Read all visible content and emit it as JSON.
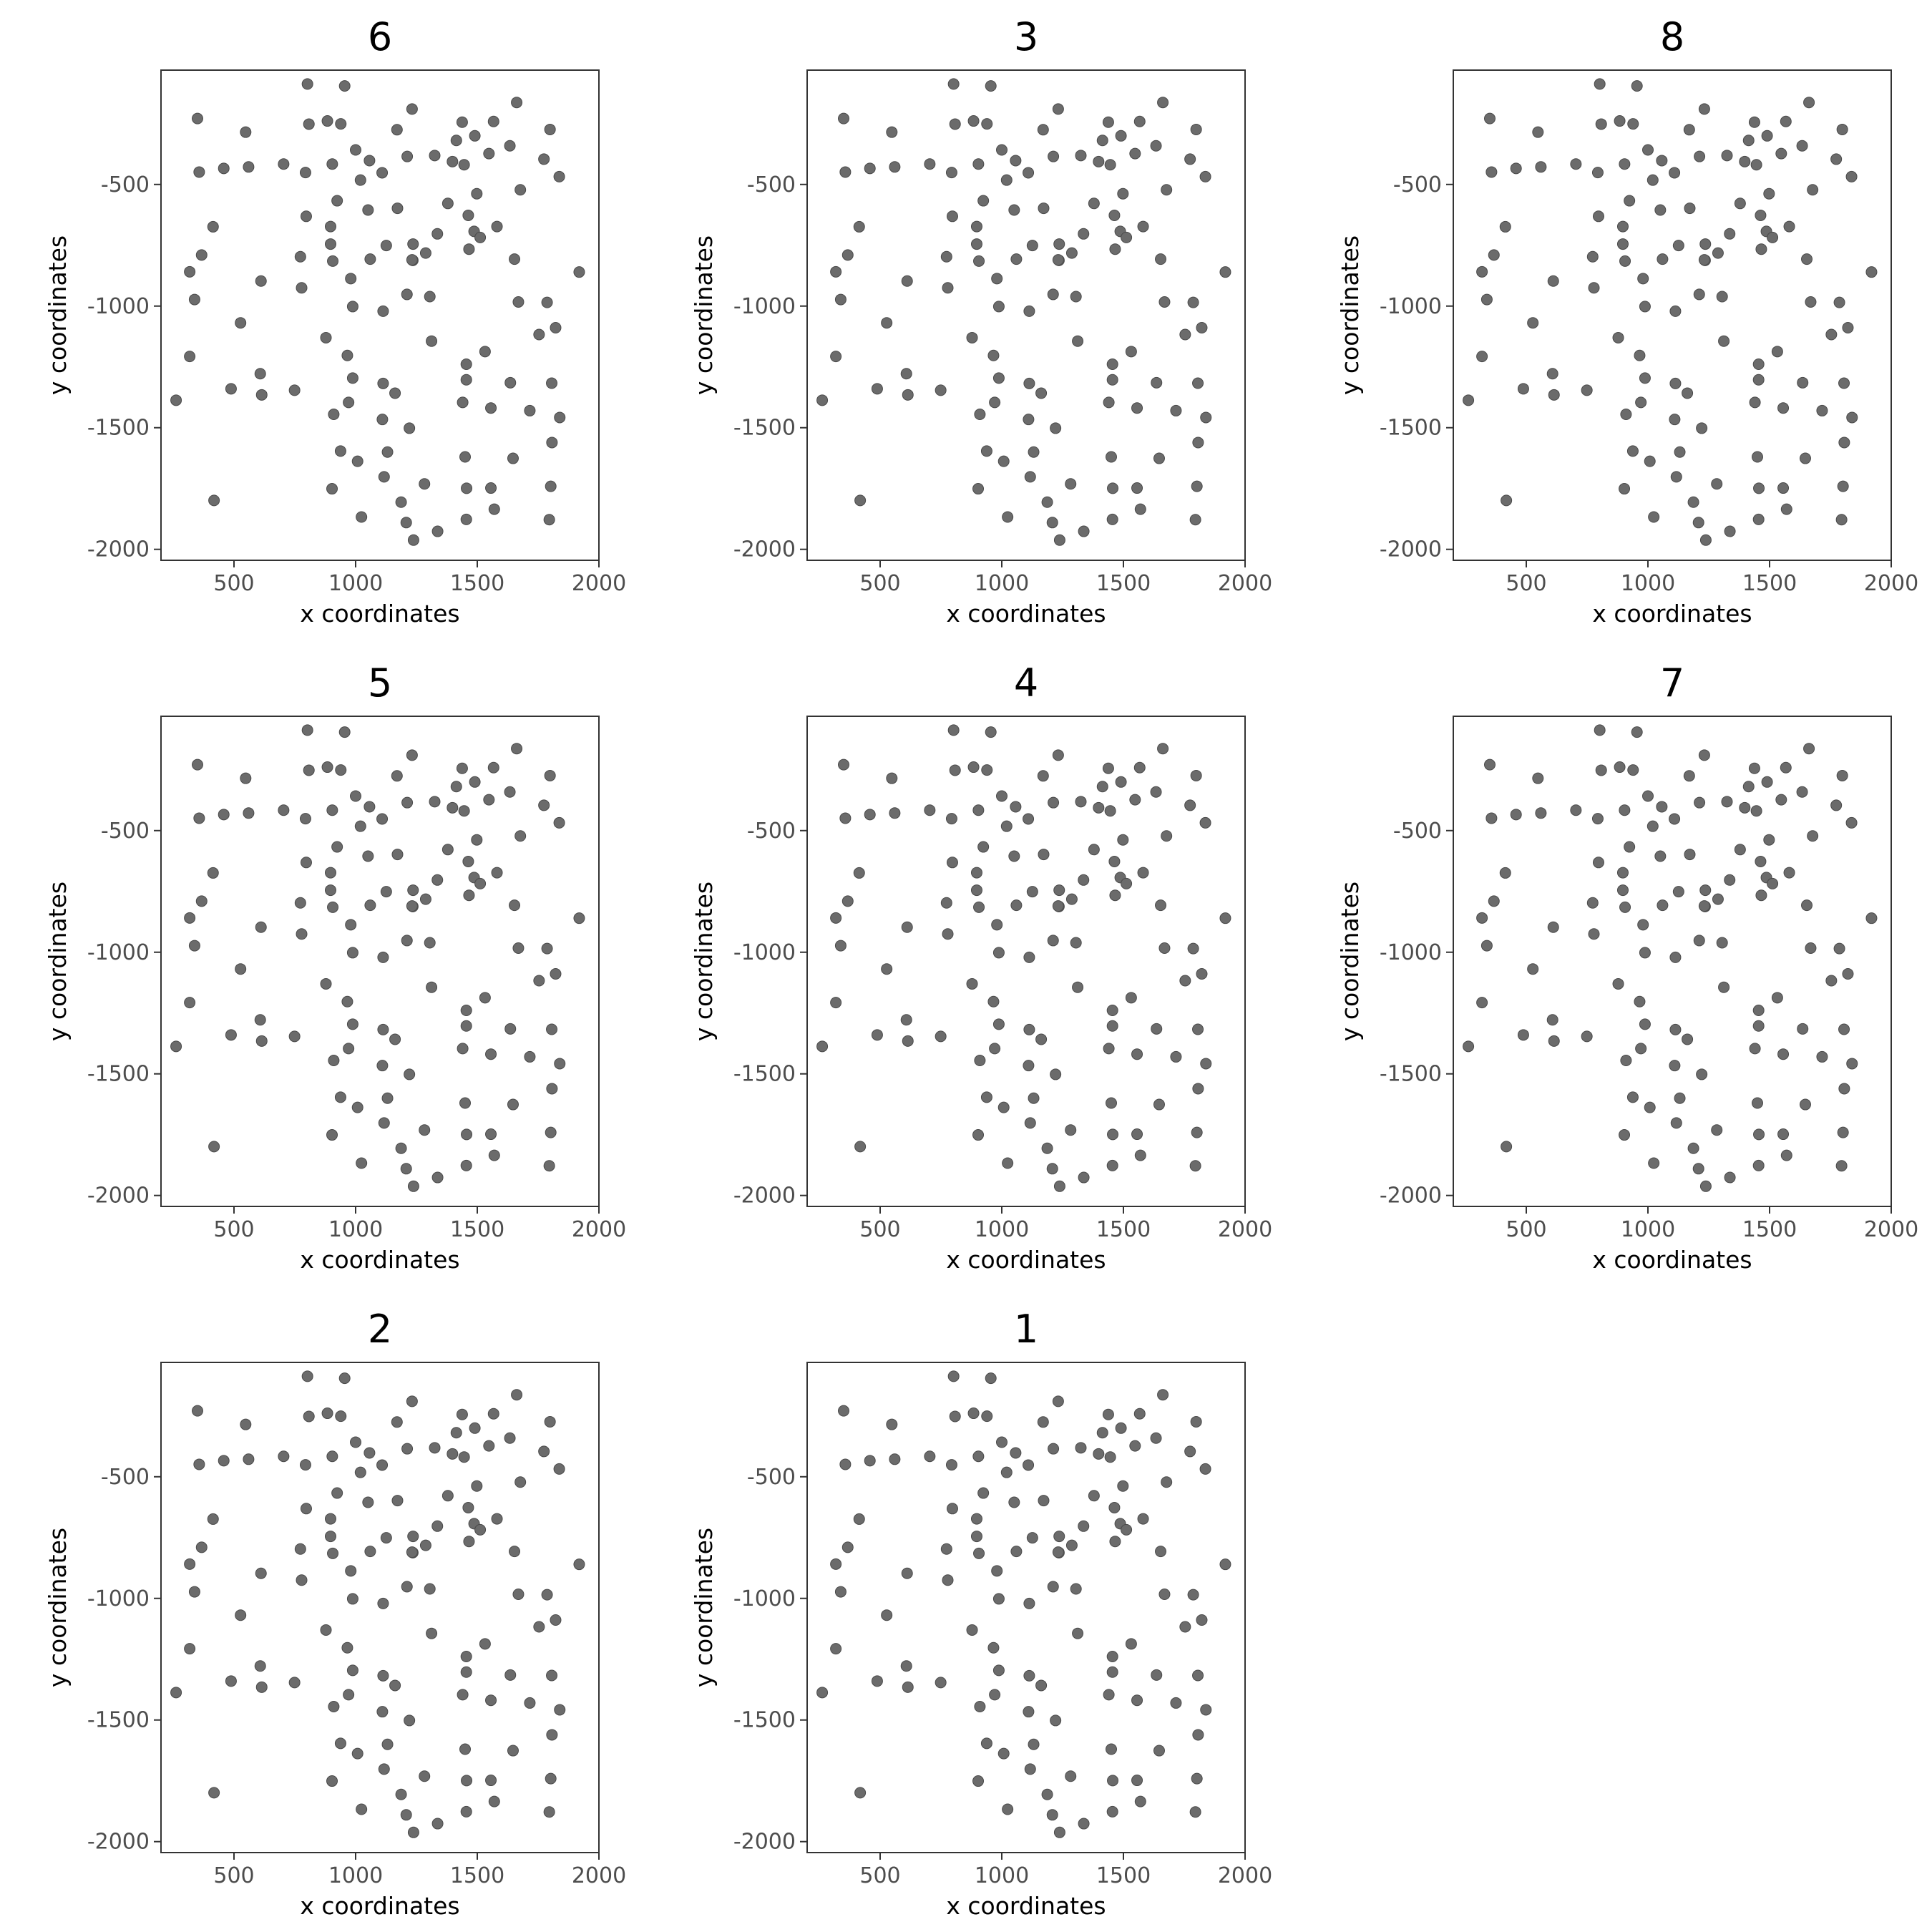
{
  "x_tick_labels": [
    "500",
    "1000",
    "1500",
    "2000"
  ],
  "y_tick_labels": [
    "-500",
    "-1000",
    "-1500",
    "-2000"
  ],
  "chart_data": {
    "type": "scatter",
    "xlabel": "x coordinates",
    "ylabel": "y coordinates",
    "xlim": [
      200,
      2000
    ],
    "ylim": [
      -2045,
      -30
    ],
    "x_ticks": [
      500,
      1000,
      1500,
      2000
    ],
    "y_ticks": [
      -500,
      -1000,
      -1500,
      -2000
    ],
    "grid": false,
    "point_color": "#6b6b6b",
    "panels": [
      {
        "title": "6"
      },
      {
        "title": "3"
      },
      {
        "title": "8"
      },
      {
        "title": "5"
      },
      {
        "title": "4"
      },
      {
        "title": "7"
      },
      {
        "title": "2"
      },
      {
        "title": "1"
      }
    ],
    "points": [
      [
        802,
        -87
      ],
      [
        955,
        -95
      ],
      [
        1662,
        -163
      ],
      [
        1232,
        -190
      ],
      [
        350,
        -229
      ],
      [
        884,
        -239
      ],
      [
        1438,
        -244
      ],
      [
        1567,
        -241
      ],
      [
        808,
        -252
      ],
      [
        939,
        -251
      ],
      [
        548,
        -285
      ],
      [
        1170,
        -275
      ],
      [
        1799,
        -274
      ],
      [
        1490,
        -300
      ],
      [
        1414,
        -319
      ],
      [
        1000,
        -358
      ],
      [
        1634,
        -341
      ],
      [
        1325,
        -381
      ],
      [
        1548,
        -373
      ],
      [
        1774,
        -396
      ],
      [
        1057,
        -402
      ],
      [
        1212,
        -385
      ],
      [
        904,
        -416
      ],
      [
        704,
        -416
      ],
      [
        1398,
        -406
      ],
      [
        560,
        -428
      ],
      [
        458,
        -434
      ],
      [
        1446,
        -419
      ],
      [
        357,
        -449
      ],
      [
        794,
        -451
      ],
      [
        1109,
        -452
      ],
      [
        1837,
        -468
      ],
      [
        1020,
        -482
      ],
      [
        1677,
        -522
      ],
      [
        1498,
        -538
      ],
      [
        1379,
        -578
      ],
      [
        924,
        -567
      ],
      [
        1172,
        -598
      ],
      [
        1051,
        -605
      ],
      [
        1463,
        -627
      ],
      [
        414,
        -674
      ],
      [
        1581,
        -673
      ],
      [
        897,
        -673
      ],
      [
        797,
        -631
      ],
      [
        1487,
        -693
      ],
      [
        1336,
        -703
      ],
      [
        1466,
        -766
      ],
      [
        1512,
        -718
      ],
      [
        897,
        -745
      ],
      [
        1236,
        -745
      ],
      [
        1126,
        -751
      ],
      [
        1288,
        -782
      ],
      [
        1235,
        -812
      ],
      [
        1653,
        -807
      ],
      [
        773,
        -797
      ],
      [
        1060,
        -807
      ],
      [
        906,
        -815
      ],
      [
        367,
        -790
      ],
      [
        1919,
        -860
      ],
      [
        318,
        -859
      ],
      [
        1232,
        -810
      ],
      [
        611,
        -897
      ],
      [
        980,
        -887
      ],
      [
        778,
        -925
      ],
      [
        1211,
        -952
      ],
      [
        1305,
        -961
      ],
      [
        338,
        -973
      ],
      [
        1669,
        -983
      ],
      [
        1787,
        -985
      ],
      [
        1113,
        -1021
      ],
      [
        988,
        -1002
      ],
      [
        1822,
        -1089
      ],
      [
        527,
        -1069
      ],
      [
        1754,
        -1117
      ],
      [
        878,
        -1130
      ],
      [
        1312,
        -1144
      ],
      [
        1532,
        -1187
      ],
      [
        318,
        -1207
      ],
      [
        966,
        -1203
      ],
      [
        1455,
        -1239
      ],
      [
        608,
        -1278
      ],
      [
        988,
        -1296
      ],
      [
        1806,
        -1317
      ],
      [
        1455,
        -1303
      ],
      [
        1113,
        -1318
      ],
      [
        1162,
        -1358
      ],
      [
        488,
        -1340
      ],
      [
        262,
        -1387
      ],
      [
        749,
        -1346
      ],
      [
        614,
        -1365
      ],
      [
        1636,
        -1315
      ],
      [
        1556,
        -1419
      ],
      [
        1440,
        -1396
      ],
      [
        1716,
        -1430
      ],
      [
        971,
        -1396
      ],
      [
        1110,
        -1466
      ],
      [
        1839,
        -1458
      ],
      [
        910,
        -1445
      ],
      [
        1221,
        -1502
      ],
      [
        1807,
        -1561
      ],
      [
        1131,
        -1600
      ],
      [
        938,
        -1596
      ],
      [
        1450,
        -1620
      ],
      [
        1008,
        -1638
      ],
      [
        1647,
        -1626
      ],
      [
        1117,
        -1702
      ],
      [
        1283,
        -1731
      ],
      [
        1802,
        -1741
      ],
      [
        1556,
        -1748
      ],
      [
        903,
        -1751
      ],
      [
        1456,
        -1749
      ],
      [
        418,
        -1799
      ],
      [
        1187,
        -1806
      ],
      [
        1570,
        -1835
      ],
      [
        1024,
        -1867
      ],
      [
        1455,
        -1877
      ],
      [
        1796,
        -1878
      ],
      [
        1208,
        -1890
      ],
      [
        1337,
        -1926
      ],
      [
        1238,
        -1962
      ]
    ]
  }
}
